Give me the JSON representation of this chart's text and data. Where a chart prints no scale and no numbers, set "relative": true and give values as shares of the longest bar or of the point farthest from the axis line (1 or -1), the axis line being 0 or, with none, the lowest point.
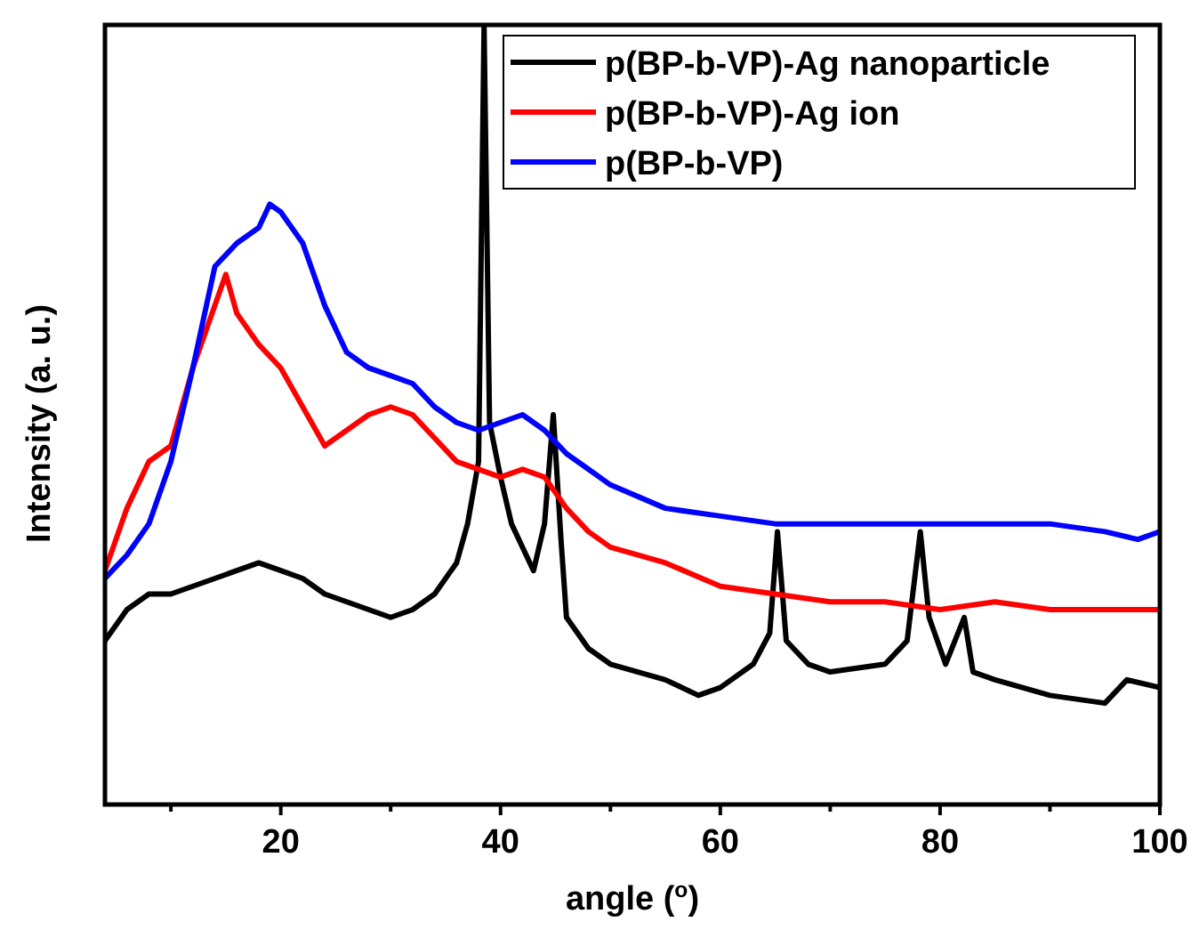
{
  "chart_data": {
    "type": "line",
    "relative": true,
    "xlabel": "angle ($^{o}$)",
    "ylabel": "Intensity (a. u.)",
    "xlim": [
      4,
      100
    ],
    "xticks": [
      {
        "value": 10,
        "label": null
      },
      20,
      {
        "value": 30,
        "label": null
      },
      40,
      {
        "value": 50,
        "label": null
      },
      60,
      {
        "value": 70,
        "label": null
      },
      80,
      {
        "value": 90,
        "label": null
      },
      100
    ],
    "legend": "top right",
    "grid": false,
    "marker": "none",
    "line_style": "solid",
    "series": [
      {
        "name": "p(BP-b-VP)-Ag nanoparticle",
        "color": "#000000",
        "x": [
          4,
          6,
          8,
          10,
          12,
          14,
          16,
          18,
          20,
          22,
          24,
          26,
          28,
          30,
          32,
          34,
          36,
          37,
          38,
          38.5,
          39,
          40,
          41,
          42,
          43,
          44,
          44.8,
          45.5,
          46,
          48,
          50,
          55,
          58,
          60,
          63,
          64.5,
          65.2,
          66,
          68,
          70,
          75,
          77,
          78.2,
          79,
          80.5,
          82.2,
          83,
          85,
          90,
          95,
          97,
          100
        ],
        "values": [
          0.21,
          0.25,
          0.27,
          0.27,
          0.28,
          0.29,
          0.3,
          0.31,
          0.3,
          0.29,
          0.27,
          0.26,
          0.25,
          0.24,
          0.25,
          0.27,
          0.31,
          0.36,
          0.44,
          1.0,
          0.49,
          0.42,
          0.36,
          0.33,
          0.3,
          0.36,
          0.5,
          0.34,
          0.24,
          0.2,
          0.18,
          0.16,
          0.14,
          0.15,
          0.18,
          0.22,
          0.35,
          0.21,
          0.18,
          0.17,
          0.18,
          0.21,
          0.35,
          0.24,
          0.18,
          0.24,
          0.17,
          0.16,
          0.14,
          0.13,
          0.16,
          0.15
        ]
      },
      {
        "name": "p(BP-b-VP)-Ag ion",
        "color": "#ff0000",
        "x": [
          4,
          6,
          8,
          10,
          12,
          14,
          15,
          16,
          18,
          20,
          22,
          24,
          26,
          28,
          30,
          32,
          34,
          36,
          38,
          40,
          42,
          44,
          46,
          48,
          50,
          55,
          60,
          65,
          70,
          75,
          80,
          85,
          90,
          95,
          98,
          100
        ],
        "values": [
          0.3,
          0.38,
          0.44,
          0.46,
          0.56,
          0.64,
          0.68,
          0.63,
          0.59,
          0.56,
          0.51,
          0.46,
          0.48,
          0.5,
          0.51,
          0.5,
          0.47,
          0.44,
          0.43,
          0.42,
          0.43,
          0.42,
          0.38,
          0.35,
          0.33,
          0.31,
          0.28,
          0.27,
          0.26,
          0.26,
          0.25,
          0.26,
          0.25,
          0.25,
          0.25,
          0.25
        ]
      },
      {
        "name": "p(BP-b-VP)",
        "color": "#0000ff",
        "x": [
          4,
          6,
          8,
          10,
          12,
          14,
          16,
          18,
          19,
          20,
          22,
          24,
          26,
          28,
          30,
          32,
          34,
          36,
          38,
          40,
          42,
          44,
          46,
          48,
          50,
          55,
          60,
          65,
          70,
          75,
          80,
          85,
          90,
          95,
          98,
          100
        ],
        "values": [
          0.29,
          0.32,
          0.36,
          0.44,
          0.56,
          0.69,
          0.72,
          0.74,
          0.77,
          0.76,
          0.72,
          0.64,
          0.58,
          0.56,
          0.55,
          0.54,
          0.51,
          0.49,
          0.48,
          0.49,
          0.5,
          0.48,
          0.45,
          0.43,
          0.41,
          0.38,
          0.37,
          0.36,
          0.36,
          0.36,
          0.36,
          0.36,
          0.36,
          0.35,
          0.34,
          0.35
        ]
      }
    ]
  }
}
